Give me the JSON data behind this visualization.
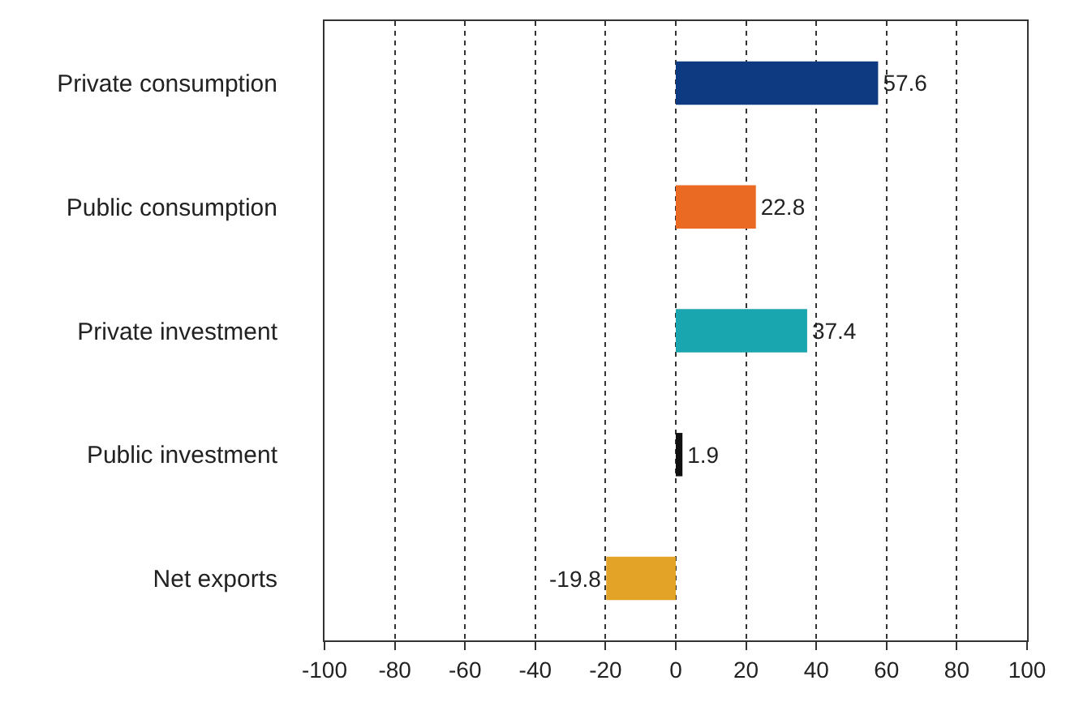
{
  "chart_data": {
    "type": "bar",
    "orientation": "horizontal",
    "categories": [
      "Private consumption",
      "Public consumption",
      "Private investment",
      "Public investment",
      "Net exports"
    ],
    "values": [
      57.6,
      22.8,
      37.4,
      1.9,
      -19.8
    ],
    "colors": [
      "#0d3a80",
      "#ea6a24",
      "#1aa6ae",
      "#111111",
      "#e2a326"
    ],
    "xlim": [
      -100,
      100
    ],
    "xticks": [
      -100,
      -80,
      -60,
      -40,
      -20,
      0,
      20,
      40,
      60,
      80,
      100
    ],
    "grid": "x",
    "data_labels": true
  }
}
